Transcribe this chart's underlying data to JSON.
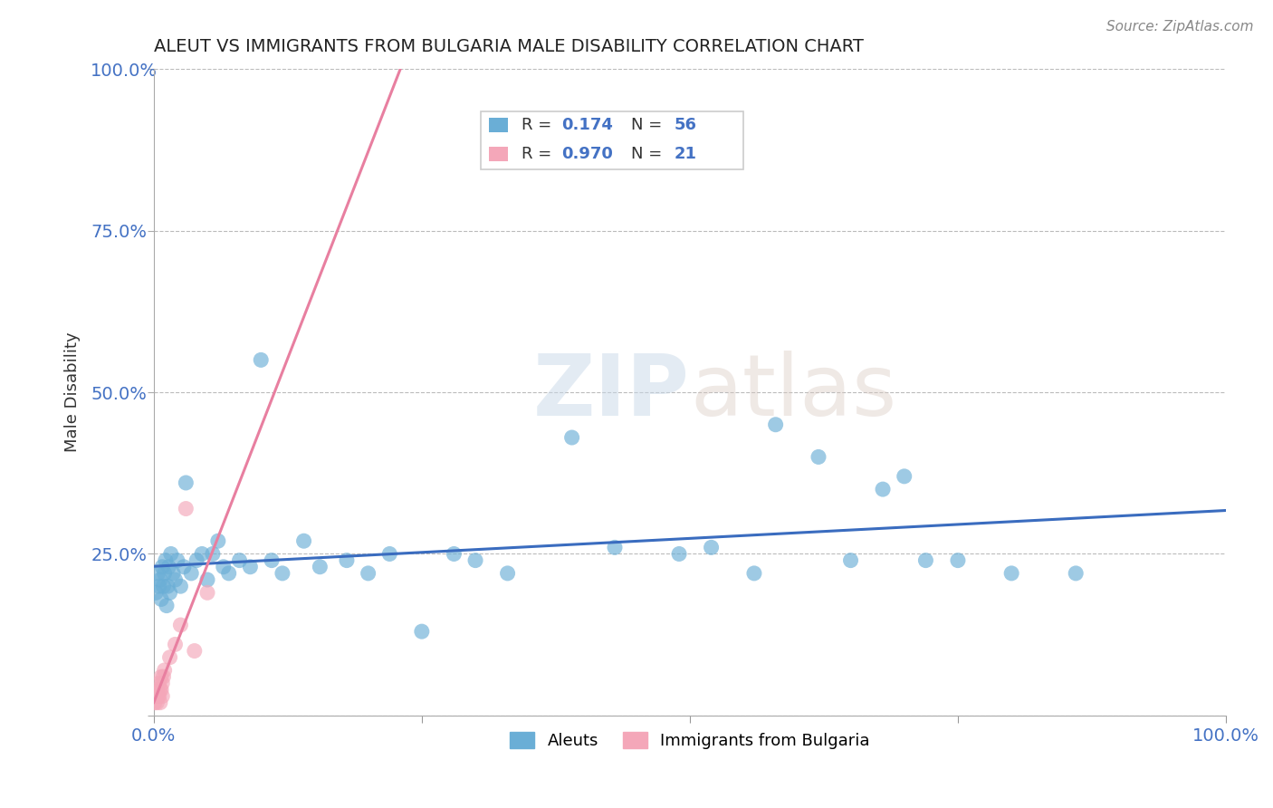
{
  "title": "ALEUT VS IMMIGRANTS FROM BULGARIA MALE DISABILITY CORRELATION CHART",
  "source": "Source: ZipAtlas.com",
  "ylabel_label": "Male Disability",
  "legend_box_R_N": {
    "aleut_R": "0.174",
    "aleut_N": "56",
    "bulgaria_R": "0.970",
    "bulgaria_N": "21"
  },
  "watermark": "ZIPatlas",
  "aleut_color": "#6aaed6",
  "bulgaria_color": "#f4a7b9",
  "aleut_line_color": "#3a6cbf",
  "bulgaria_line_color": "#e87fa0",
  "background_color": "#ffffff",
  "grid_color": "#bbbbbb",
  "aleut_points": [
    [
      0.002,
      0.19
    ],
    [
      0.004,
      0.22
    ],
    [
      0.005,
      0.2
    ],
    [
      0.006,
      0.21
    ],
    [
      0.007,
      0.18
    ],
    [
      0.008,
      0.23
    ],
    [
      0.009,
      0.2
    ],
    [
      0.01,
      0.22
    ],
    [
      0.011,
      0.24
    ],
    [
      0.012,
      0.17
    ],
    [
      0.013,
      0.2
    ],
    [
      0.014,
      0.23
    ],
    [
      0.015,
      0.19
    ],
    [
      0.016,
      0.25
    ],
    [
      0.018,
      0.22
    ],
    [
      0.02,
      0.21
    ],
    [
      0.022,
      0.24
    ],
    [
      0.025,
      0.2
    ],
    [
      0.028,
      0.23
    ],
    [
      0.03,
      0.36
    ],
    [
      0.035,
      0.22
    ],
    [
      0.04,
      0.24
    ],
    [
      0.045,
      0.25
    ],
    [
      0.05,
      0.21
    ],
    [
      0.055,
      0.25
    ],
    [
      0.06,
      0.27
    ],
    [
      0.065,
      0.23
    ],
    [
      0.07,
      0.22
    ],
    [
      0.08,
      0.24
    ],
    [
      0.09,
      0.23
    ],
    [
      0.1,
      0.55
    ],
    [
      0.11,
      0.24
    ],
    [
      0.12,
      0.22
    ],
    [
      0.14,
      0.27
    ],
    [
      0.155,
      0.23
    ],
    [
      0.18,
      0.24
    ],
    [
      0.2,
      0.22
    ],
    [
      0.22,
      0.25
    ],
    [
      0.25,
      0.13
    ],
    [
      0.28,
      0.25
    ],
    [
      0.3,
      0.24
    ],
    [
      0.33,
      0.22
    ],
    [
      0.39,
      0.43
    ],
    [
      0.43,
      0.26
    ],
    [
      0.49,
      0.25
    ],
    [
      0.52,
      0.26
    ],
    [
      0.56,
      0.22
    ],
    [
      0.58,
      0.45
    ],
    [
      0.62,
      0.4
    ],
    [
      0.65,
      0.24
    ],
    [
      0.68,
      0.35
    ],
    [
      0.7,
      0.37
    ],
    [
      0.72,
      0.24
    ],
    [
      0.75,
      0.24
    ],
    [
      0.8,
      0.22
    ],
    [
      0.86,
      0.22
    ]
  ],
  "bulgaria_points": [
    [
      0.001,
      0.02
    ],
    [
      0.002,
      0.03
    ],
    [
      0.003,
      0.02
    ],
    [
      0.003,
      0.04
    ],
    [
      0.004,
      0.03
    ],
    [
      0.005,
      0.03
    ],
    [
      0.005,
      0.05
    ],
    [
      0.006,
      0.04
    ],
    [
      0.006,
      0.02
    ],
    [
      0.007,
      0.04
    ],
    [
      0.007,
      0.06
    ],
    [
      0.008,
      0.05
    ],
    [
      0.008,
      0.03
    ],
    [
      0.009,
      0.06
    ],
    [
      0.01,
      0.07
    ],
    [
      0.015,
      0.09
    ],
    [
      0.02,
      0.11
    ],
    [
      0.025,
      0.14
    ],
    [
      0.03,
      0.32
    ],
    [
      0.038,
      0.1
    ],
    [
      0.05,
      0.19
    ]
  ],
  "xlim": [
    0.0,
    1.0
  ],
  "ylim": [
    0.0,
    1.0
  ],
  "yticks": [
    0.0,
    0.25,
    0.5,
    0.75,
    1.0
  ],
  "ytick_labels": [
    "",
    "25.0%",
    "50.0%",
    "75.0%",
    "100.0%"
  ],
  "xticks": [
    0.0,
    1.0
  ],
  "xtick_labels": [
    "0.0%",
    "100.0%"
  ]
}
